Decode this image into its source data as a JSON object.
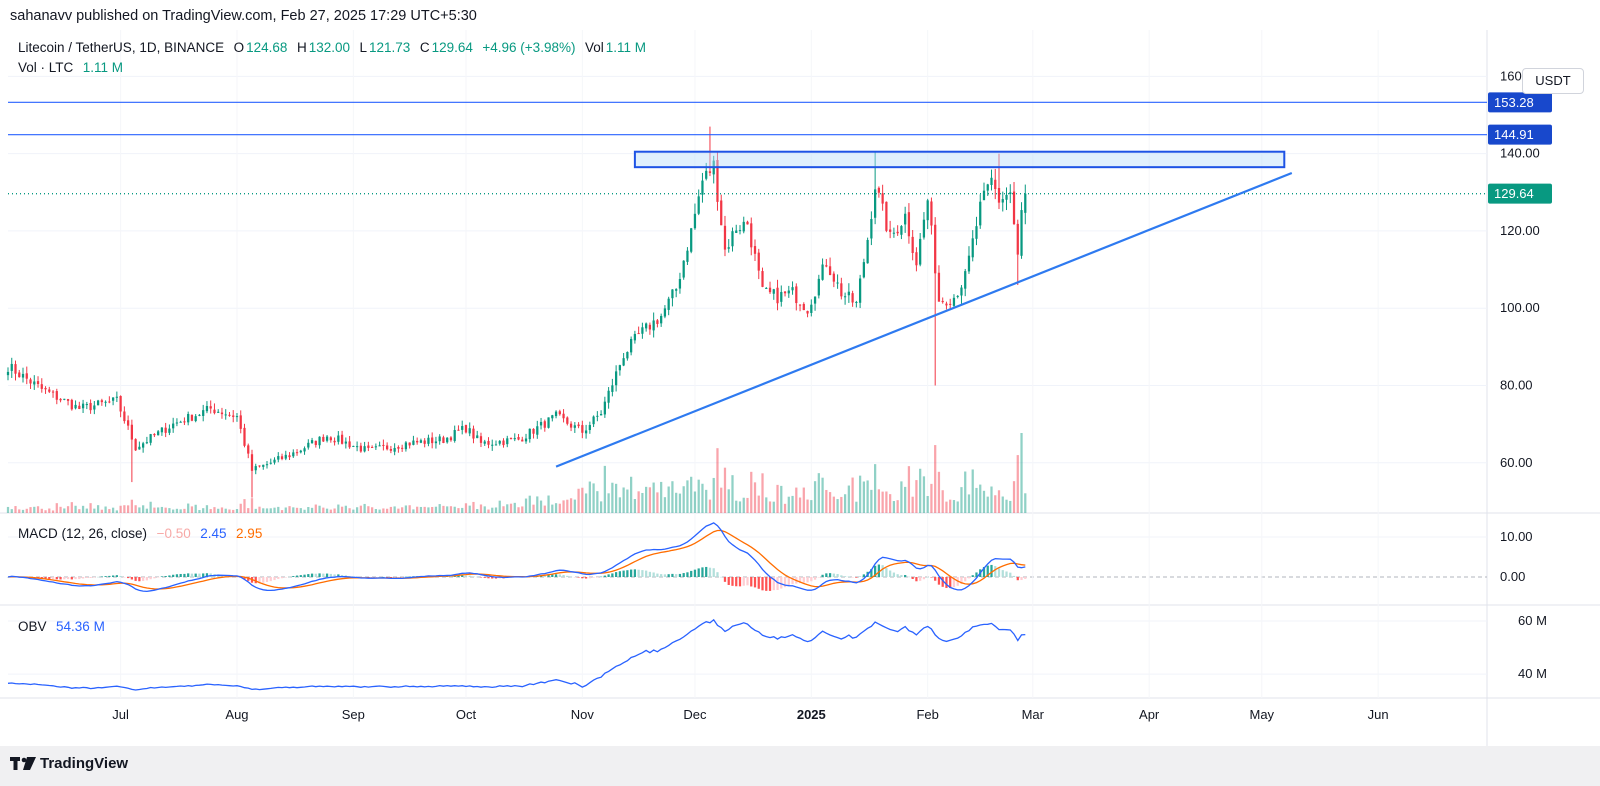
{
  "header": {
    "published_text": "sahanavv published on TradingView.com, Feb 27, 2025 17:29 UTC+5:30"
  },
  "legend": {
    "symbol": "Litecoin / TetherUS, 1D, BINANCE",
    "open_label": "O",
    "open": "124.68",
    "high_label": "H",
    "high": "132.00",
    "low_label": "L",
    "low": "121.73",
    "close_label": "C",
    "close": "129.64",
    "change": "+4.96 (+3.98%)",
    "vol_label": "Vol",
    "vol": "1.11 M",
    "vol_line_label": "Vol · LTC",
    "vol_line_value": "1.11 M"
  },
  "macd_legend": {
    "label": "MACD (12, 26, close)",
    "hist": "−0.50",
    "macd": "2.45",
    "signal": "2.95"
  },
  "obv_legend": {
    "label": "OBV",
    "value": "54.36 M"
  },
  "currency_button": "USDT",
  "footer": {
    "brand": "TradingView",
    "logo_icon": "tradingview-logo-icon"
  },
  "colors": {
    "up": "#089981",
    "down": "#f23645",
    "line_blue": "#2962ff",
    "trendline": "#2e7af0",
    "macd_line": "#2962ff",
    "signal_line": "#ff6d00",
    "level_tag": "#1848cc",
    "last_price_tag": "#089981"
  },
  "chart_data": [
    {
      "type": "candlestick",
      "title": "Litecoin / TetherUS, 1D, BINANCE",
      "y_ticks": [
        "160.00",
        "140.00",
        "120.00",
        "100.00",
        "80.00",
        "60.00"
      ],
      "ylim": [
        47,
        172
      ],
      "x_ticks": [
        "Jul",
        "Aug",
        "Sep",
        "Oct",
        "Nov",
        "Dec",
        "2025",
        "Feb",
        "Mar",
        "Apr",
        "May",
        "Jun"
      ],
      "xlim": [
        "2024-06-01",
        "2025-06-30"
      ],
      "horizontal_levels": [
        {
          "value": 153.28,
          "label": "153.28"
        },
        {
          "value": 144.91,
          "label": "144.91"
        }
      ],
      "last_price": {
        "value": 129.64,
        "label": "129.64"
      },
      "resistance_zone": {
        "x_start": "2024-11-15",
        "x_end": "2025-05-07",
        "y_low": 136.5,
        "y_high": 140.5
      },
      "trendline": {
        "points": [
          {
            "x": "2024-10-25",
            "y": 59
          },
          {
            "x": "2025-05-09",
            "y": 135
          }
        ]
      },
      "anchors": [
        [
          "2024-06-01",
          85
        ],
        [
          "2024-06-10",
          79
        ],
        [
          "2024-06-20",
          74
        ],
        [
          "2024-06-30",
          76
        ],
        [
          "2024-07-05",
          64
        ],
        [
          "2024-07-15",
          70
        ],
        [
          "2024-07-25",
          74
        ],
        [
          "2024-08-01",
          72
        ],
        [
          "2024-08-05",
          58
        ],
        [
          "2024-08-15",
          62
        ],
        [
          "2024-08-25",
          67
        ],
        [
          "2024-09-05",
          63
        ],
        [
          "2024-09-15",
          65
        ],
        [
          "2024-09-25",
          66
        ],
        [
          "2024-10-01",
          69
        ],
        [
          "2024-10-05",
          65
        ],
        [
          "2024-10-15",
          66
        ],
        [
          "2024-10-25",
          72
        ],
        [
          "2024-11-01",
          68
        ],
        [
          "2024-11-06",
          73
        ],
        [
          "2024-11-12",
          88
        ],
        [
          "2024-11-16",
          93
        ],
        [
          "2024-11-22",
          98
        ],
        [
          "2024-11-26",
          105
        ],
        [
          "2024-11-30",
          120
        ],
        [
          "2024-12-03",
          133
        ],
        [
          "2024-12-06",
          137
        ],
        [
          "2024-12-09",
          115
        ],
        [
          "2024-12-12",
          121
        ],
        [
          "2024-12-15",
          122
        ],
        [
          "2024-12-19",
          104
        ],
        [
          "2024-12-23",
          103
        ],
        [
          "2024-12-27",
          104
        ],
        [
          "2024-12-31",
          100
        ],
        [
          "2025-01-05",
          112
        ],
        [
          "2025-01-09",
          104
        ],
        [
          "2025-01-13",
          101
        ],
        [
          "2025-01-16",
          118
        ],
        [
          "2025-01-18",
          132
        ],
        [
          "2025-01-22",
          118
        ],
        [
          "2025-01-26",
          124
        ],
        [
          "2025-01-29",
          112
        ],
        [
          "2025-02-01",
          128
        ],
        [
          "2025-02-04",
          102
        ],
        [
          "2025-02-08",
          103
        ],
        [
          "2025-02-11",
          108
        ],
        [
          "2025-02-15",
          126
        ],
        [
          "2025-02-18",
          133
        ],
        [
          "2025-02-20",
          128
        ],
        [
          "2025-02-23",
          130
        ],
        [
          "2025-02-25",
          113
        ],
        [
          "2025-02-26",
          124.68
        ],
        [
          "2025-02-27",
          129.64
        ]
      ],
      "spikes": [
        {
          "date": "2024-07-04",
          "low": 55
        },
        {
          "date": "2024-08-05",
          "low": 51
        },
        {
          "date": "2024-12-05",
          "high": 147
        },
        {
          "date": "2025-01-18",
          "high": 140.5
        },
        {
          "date": "2025-02-03",
          "low": 80
        },
        {
          "date": "2025-02-20",
          "high": 140
        },
        {
          "date": "2025-02-25",
          "low": 106
        }
      ]
    },
    {
      "type": "bar",
      "title": "Vol · LTC",
      "value_last": "1.11 M"
    },
    {
      "type": "line",
      "title": "MACD (12, 26, close)",
      "y_ticks": [
        "10.00",
        "0.00"
      ],
      "ylim": [
        -7,
        16
      ],
      "series": [
        {
          "name": "MACD",
          "value_last": 2.45
        },
        {
          "name": "Signal",
          "value_last": 2.95
        },
        {
          "name": "Histogram",
          "value_last": -0.5
        }
      ]
    },
    {
      "type": "line",
      "title": "OBV",
      "y_ticks": [
        "60 M",
        "40 M"
      ],
      "ylim": [
        31,
        66
      ],
      "series": [
        {
          "name": "OBV",
          "value_last": 54.36
        }
      ]
    }
  ]
}
